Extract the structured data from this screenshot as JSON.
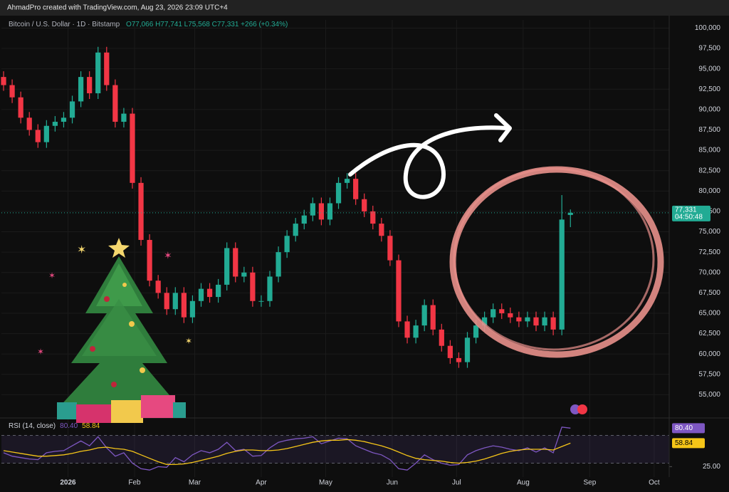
{
  "header": {
    "credit": "AhmadPro created with TradingView.com, Aug 23, 2026 23:09 UTC+4"
  },
  "chart_data": {
    "type": "candlestick",
    "title": "Bitcoin / U.S. Dollar · 1D · Bitstamp",
    "legend_values": "O77,066 H77,741 L75,568 C77,331 +266 (+0.34%)",
    "up_color": "#22ab94",
    "down_color": "#f23645",
    "grid": true,
    "x": [
      -30,
      -26,
      -22,
      -18,
      -14,
      -10,
      -6,
      -2,
      2,
      6,
      10,
      14,
      18,
      22,
      26,
      30,
      34,
      38,
      42,
      46,
      50,
      54,
      58,
      62,
      66,
      70,
      74,
      78,
      82,
      86,
      90,
      94,
      98,
      102,
      106,
      110,
      114,
      118,
      122,
      126,
      130,
      134,
      138,
      142,
      146,
      150,
      154,
      158,
      162,
      166,
      170,
      174,
      178,
      182,
      186,
      190,
      194,
      198,
      202,
      206,
      210,
      214,
      218,
      222,
      226,
      230,
      234
    ],
    "open": [
      94000,
      93000,
      91500,
      89000,
      87500,
      86000,
      88000,
      88500,
      89000,
      91000,
      94000,
      92000,
      97000,
      93000,
      88500,
      89500,
      81000,
      74000,
      69000,
      67500,
      65500,
      67500,
      64500,
      66500,
      68000,
      67000,
      68500,
      73000,
      69500,
      70000,
      66500,
      66500,
      69500,
      72500,
      74500,
      76000,
      77000,
      78500,
      76500,
      78500,
      81000,
      81500,
      79000,
      77500,
      76000,
      74500,
      71500,
      64000,
      62000,
      63500,
      66000,
      63000,
      61000,
      59500,
      59000,
      62000,
      63500,
      64500,
      65500,
      65000,
      64500,
      64000,
      64500,
      63500,
      64500,
      63000,
      77066
    ],
    "high": [
      94700,
      93700,
      92200,
      89700,
      88200,
      88700,
      89200,
      89700,
      91700,
      94700,
      94700,
      97700,
      97700,
      93700,
      90200,
      90200,
      81700,
      74700,
      69700,
      68200,
      68200,
      68200,
      67200,
      68700,
      68700,
      69200,
      73700,
      73700,
      70700,
      70700,
      67200,
      70200,
      73200,
      75200,
      76700,
      77700,
      79200,
      79200,
      79200,
      81700,
      82200,
      82200,
      79700,
      78200,
      76700,
      75200,
      72200,
      64700,
      64200,
      66700,
      66700,
      63700,
      61700,
      60200,
      62700,
      64200,
      65200,
      66200,
      66200,
      65700,
      65200,
      65200,
      65200,
      65200,
      65200,
      79500,
      77741
    ],
    "low": [
      92300,
      90800,
      88300,
      86800,
      85300,
      85300,
      87300,
      87800,
      88300,
      90300,
      91300,
      91300,
      92300,
      87800,
      87800,
      80300,
      73300,
      68300,
      66800,
      64800,
      64800,
      63800,
      63800,
      65800,
      66300,
      66300,
      67800,
      68800,
      68800,
      65800,
      65800,
      65800,
      68800,
      71800,
      73800,
      75300,
      76300,
      75800,
      75800,
      77800,
      80300,
      78300,
      76800,
      75300,
      73800,
      70800,
      63300,
      61300,
      61300,
      62800,
      62300,
      60300,
      58800,
      58300,
      58300,
      61300,
      62800,
      63800,
      64300,
      63800,
      63300,
      63300,
      62800,
      62800,
      62300,
      62300,
      75568
    ],
    "close": [
      93000,
      91500,
      89000,
      87500,
      86000,
      88000,
      88500,
      89000,
      91000,
      94000,
      92000,
      97000,
      93000,
      88500,
      89500,
      81000,
      74000,
      69000,
      67500,
      65500,
      67500,
      64500,
      66500,
      68000,
      67000,
      68500,
      73000,
      69500,
      70000,
      66500,
      66500,
      69500,
      72500,
      74500,
      76000,
      77000,
      78500,
      76500,
      78500,
      81000,
      81500,
      79000,
      77500,
      76000,
      74500,
      71500,
      64000,
      62000,
      63500,
      66000,
      63000,
      61000,
      59500,
      59000,
      62000,
      63500,
      64500,
      65500,
      65000,
      64500,
      64000,
      64500,
      63500,
      64500,
      63000,
      76500,
      77331
    ],
    "last_price_label": "77,331",
    "countdown": "04:50:48",
    "xlim": [
      -31,
      280
    ],
    "xticks": [
      {
        "value": 0,
        "label": "2026"
      },
      {
        "value": 31,
        "label": "Feb"
      },
      {
        "value": 59,
        "label": "Mar"
      },
      {
        "value": 90,
        "label": "Apr"
      },
      {
        "value": 120,
        "label": "May"
      },
      {
        "value": 151,
        "label": "Jun"
      },
      {
        "value": 181,
        "label": "Jul"
      },
      {
        "value": 212,
        "label": "Aug"
      },
      {
        "value": 243,
        "label": "Sep"
      },
      {
        "value": 273,
        "label": "Oct"
      }
    ],
    "ylim": [
      52500,
      101000
    ],
    "yticks": [
      {
        "value": 55000,
        "label": "55,000"
      },
      {
        "value": 57500,
        "label": "57,500"
      },
      {
        "value": 60000,
        "label": "60,000"
      },
      {
        "value": 62500,
        "label": "62,500"
      },
      {
        "value": 65000,
        "label": "65,000"
      },
      {
        "value": 67500,
        "label": "67,500"
      },
      {
        "value": 70000,
        "label": "70,000"
      },
      {
        "value": 72500,
        "label": "72,500"
      },
      {
        "value": 75000,
        "label": "75,000"
      },
      {
        "value": 77500,
        "label": "77,500"
      },
      {
        "value": 80000,
        "label": "80,000"
      },
      {
        "value": 82500,
        "label": "82,500"
      },
      {
        "value": 85000,
        "label": "85,000"
      },
      {
        "value": 87500,
        "label": "87,500"
      },
      {
        "value": 90000,
        "label": "90,000"
      },
      {
        "value": 92500,
        "label": "92,500"
      },
      {
        "value": 95000,
        "label": "95,000"
      },
      {
        "value": 97500,
        "label": "97,500"
      },
      {
        "value": 100000,
        "label": "100,000"
      }
    ],
    "indicator": {
      "type": "line",
      "title": "RSI (14, close)",
      "ylim": [
        10,
        92
      ],
      "yticks": [
        {
          "value": 25,
          "label": "25.00"
        }
      ],
      "bands": [
        30,
        70
      ],
      "band_color": "#7e57c2",
      "series": [
        {
          "color": "#7e57c2",
          "last_label": "80.40",
          "values": [
            45,
            40,
            38,
            36,
            35,
            45,
            47,
            48,
            55,
            62,
            55,
            68,
            52,
            40,
            45,
            30,
            22,
            20,
            25,
            24,
            38,
            32,
            42,
            48,
            45,
            50,
            60,
            48,
            50,
            40,
            41,
            52,
            60,
            63,
            65,
            66,
            68,
            58,
            62,
            66,
            65,
            55,
            50,
            45,
            42,
            35,
            22,
            20,
            30,
            42,
            35,
            30,
            27,
            28,
            42,
            48,
            52,
            55,
            53,
            50,
            48,
            52,
            46,
            52,
            45,
            82,
            80.4
          ]
        },
        {
          "color": "#f5c518",
          "last_label": "58.84",
          "values": [
            48,
            46,
            44,
            42,
            40,
            40,
            41,
            42,
            44,
            47,
            49,
            52,
            53,
            51,
            50,
            47,
            42,
            37,
            32,
            28,
            28,
            29,
            31,
            34,
            37,
            40,
            44,
            47,
            49,
            49,
            48,
            48,
            49,
            51,
            54,
            57,
            60,
            62,
            63,
            63,
            64,
            63,
            61,
            58,
            55,
            51,
            46,
            41,
            37,
            35,
            34,
            33,
            31,
            30,
            31,
            33,
            36,
            40,
            44,
            47,
            49,
            50,
            50,
            50,
            49,
            54,
            58.84
          ]
        }
      ]
    }
  }
}
